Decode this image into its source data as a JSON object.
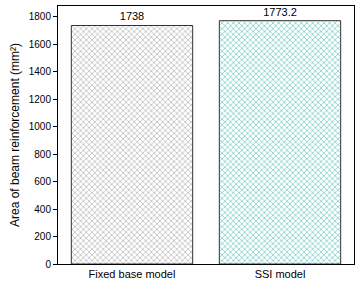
{
  "chart_data": {
    "type": "bar",
    "y_label": "Area of beam reinforcement (mm²)",
    "categories": [
      "Fixed base model",
      "SSI model"
    ],
    "values": [
      1738,
      1773.2
    ],
    "colors": [
      "#9a9a9a",
      "#3fb3b3"
    ],
    "data_labels": true,
    "ylim": [
      0,
      1880
    ],
    "yticks": [
      0,
      200,
      400,
      600,
      800,
      1000,
      1200,
      1400,
      1600,
      1800
    ],
    "grid": false
  }
}
